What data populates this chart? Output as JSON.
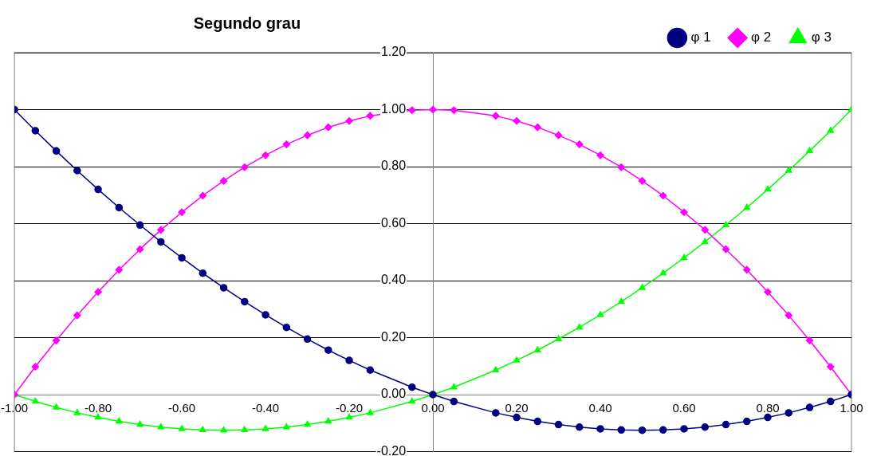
{
  "chart_data": {
    "type": "line",
    "title": "Segundo grau",
    "x": [
      -1,
      -0.95,
      -0.9,
      -0.85,
      -0.8,
      -0.75,
      -0.7,
      -0.65,
      -0.6,
      -0.55,
      -0.5,
      -0.45,
      -0.4,
      -0.35,
      -0.3,
      -0.25,
      -0.2,
      -0.15,
      -0.05,
      0,
      0.05,
      0.15,
      0.2,
      0.25,
      0.3,
      0.35,
      0.4,
      0.45,
      0.5,
      0.55,
      0.6,
      0.65,
      0.7,
      0.75,
      0.8,
      0.85,
      0.9,
      0.95,
      1
    ],
    "series": [
      {
        "name": "φ 1",
        "color": "#000080",
        "marker": "circle",
        "values": [
          1,
          0.926,
          0.855,
          0.786,
          0.72,
          0.656,
          0.595,
          0.536,
          0.48,
          0.426,
          0.375,
          0.326,
          0.28,
          0.236,
          0.195,
          0.156,
          0.12,
          0.086,
          0.026,
          0,
          -0.024,
          -0.064,
          -0.08,
          -0.094,
          -0.105,
          -0.114,
          -0.12,
          -0.124,
          -0.125,
          -0.124,
          -0.12,
          -0.114,
          -0.105,
          -0.094,
          -0.08,
          -0.064,
          -0.045,
          -0.024,
          0
        ]
      },
      {
        "name": "φ 2",
        "color": "#ff00ff",
        "marker": "diamond",
        "values": [
          0,
          0.098,
          0.19,
          0.278,
          0.36,
          0.438,
          0.51,
          0.578,
          0.64,
          0.698,
          0.75,
          0.798,
          0.84,
          0.878,
          0.91,
          0.938,
          0.96,
          0.978,
          0.998,
          1,
          0.998,
          0.978,
          0.96,
          0.938,
          0.91,
          0.878,
          0.84,
          0.798,
          0.75,
          0.698,
          0.64,
          0.578,
          0.51,
          0.438,
          0.36,
          0.278,
          0.19,
          0.098,
          0
        ]
      },
      {
        "name": "φ 3",
        "color": "#00ff00",
        "marker": "triangle",
        "values": [
          0,
          -0.024,
          -0.045,
          -0.064,
          -0.08,
          -0.094,
          -0.105,
          -0.114,
          -0.12,
          -0.124,
          -0.125,
          -0.124,
          -0.12,
          -0.114,
          -0.105,
          -0.094,
          -0.08,
          -0.064,
          -0.024,
          0,
          0.026,
          0.086,
          0.12,
          0.156,
          0.195,
          0.236,
          0.28,
          0.326,
          0.375,
          0.426,
          0.48,
          0.536,
          0.595,
          0.656,
          0.72,
          0.786,
          0.855,
          0.926,
          1
        ]
      }
    ],
    "xlim": [
      -1,
      1
    ],
    "xticks": [
      {
        "value": -1,
        "label": "-1.00"
      },
      {
        "value": -0.8,
        "label": "-0.80"
      },
      {
        "value": -0.6,
        "label": "-0.60"
      },
      {
        "value": -0.4,
        "label": "-0.40"
      },
      {
        "value": -0.2,
        "label": "-0.20"
      },
      {
        "value": 0,
        "label": "0.00"
      },
      {
        "value": 0.2,
        "label": "0.20"
      },
      {
        "value": 0.4,
        "label": "0.40"
      },
      {
        "value": 0.6,
        "label": "0.60"
      },
      {
        "value": 0.8,
        "label": "0.80"
      },
      {
        "value": 1,
        "label": "1.00"
      }
    ],
    "ylim": [
      -0.2,
      1.2
    ],
    "yticks": [
      {
        "value": -0.2,
        "label": "-0.20"
      },
      {
        "value": 0,
        "label": "0.00"
      },
      {
        "value": 0.2,
        "label": "0.20"
      },
      {
        "value": 0.4,
        "label": "0.40"
      },
      {
        "value": 0.6,
        "label": "0.60"
      },
      {
        "value": 0.8,
        "label": "0.80"
      },
      {
        "value": 1,
        "label": "1.00"
      },
      {
        "value": 1.2,
        "label": "1.20"
      }
    ],
    "grid": "y",
    "legend": "top right"
  }
}
